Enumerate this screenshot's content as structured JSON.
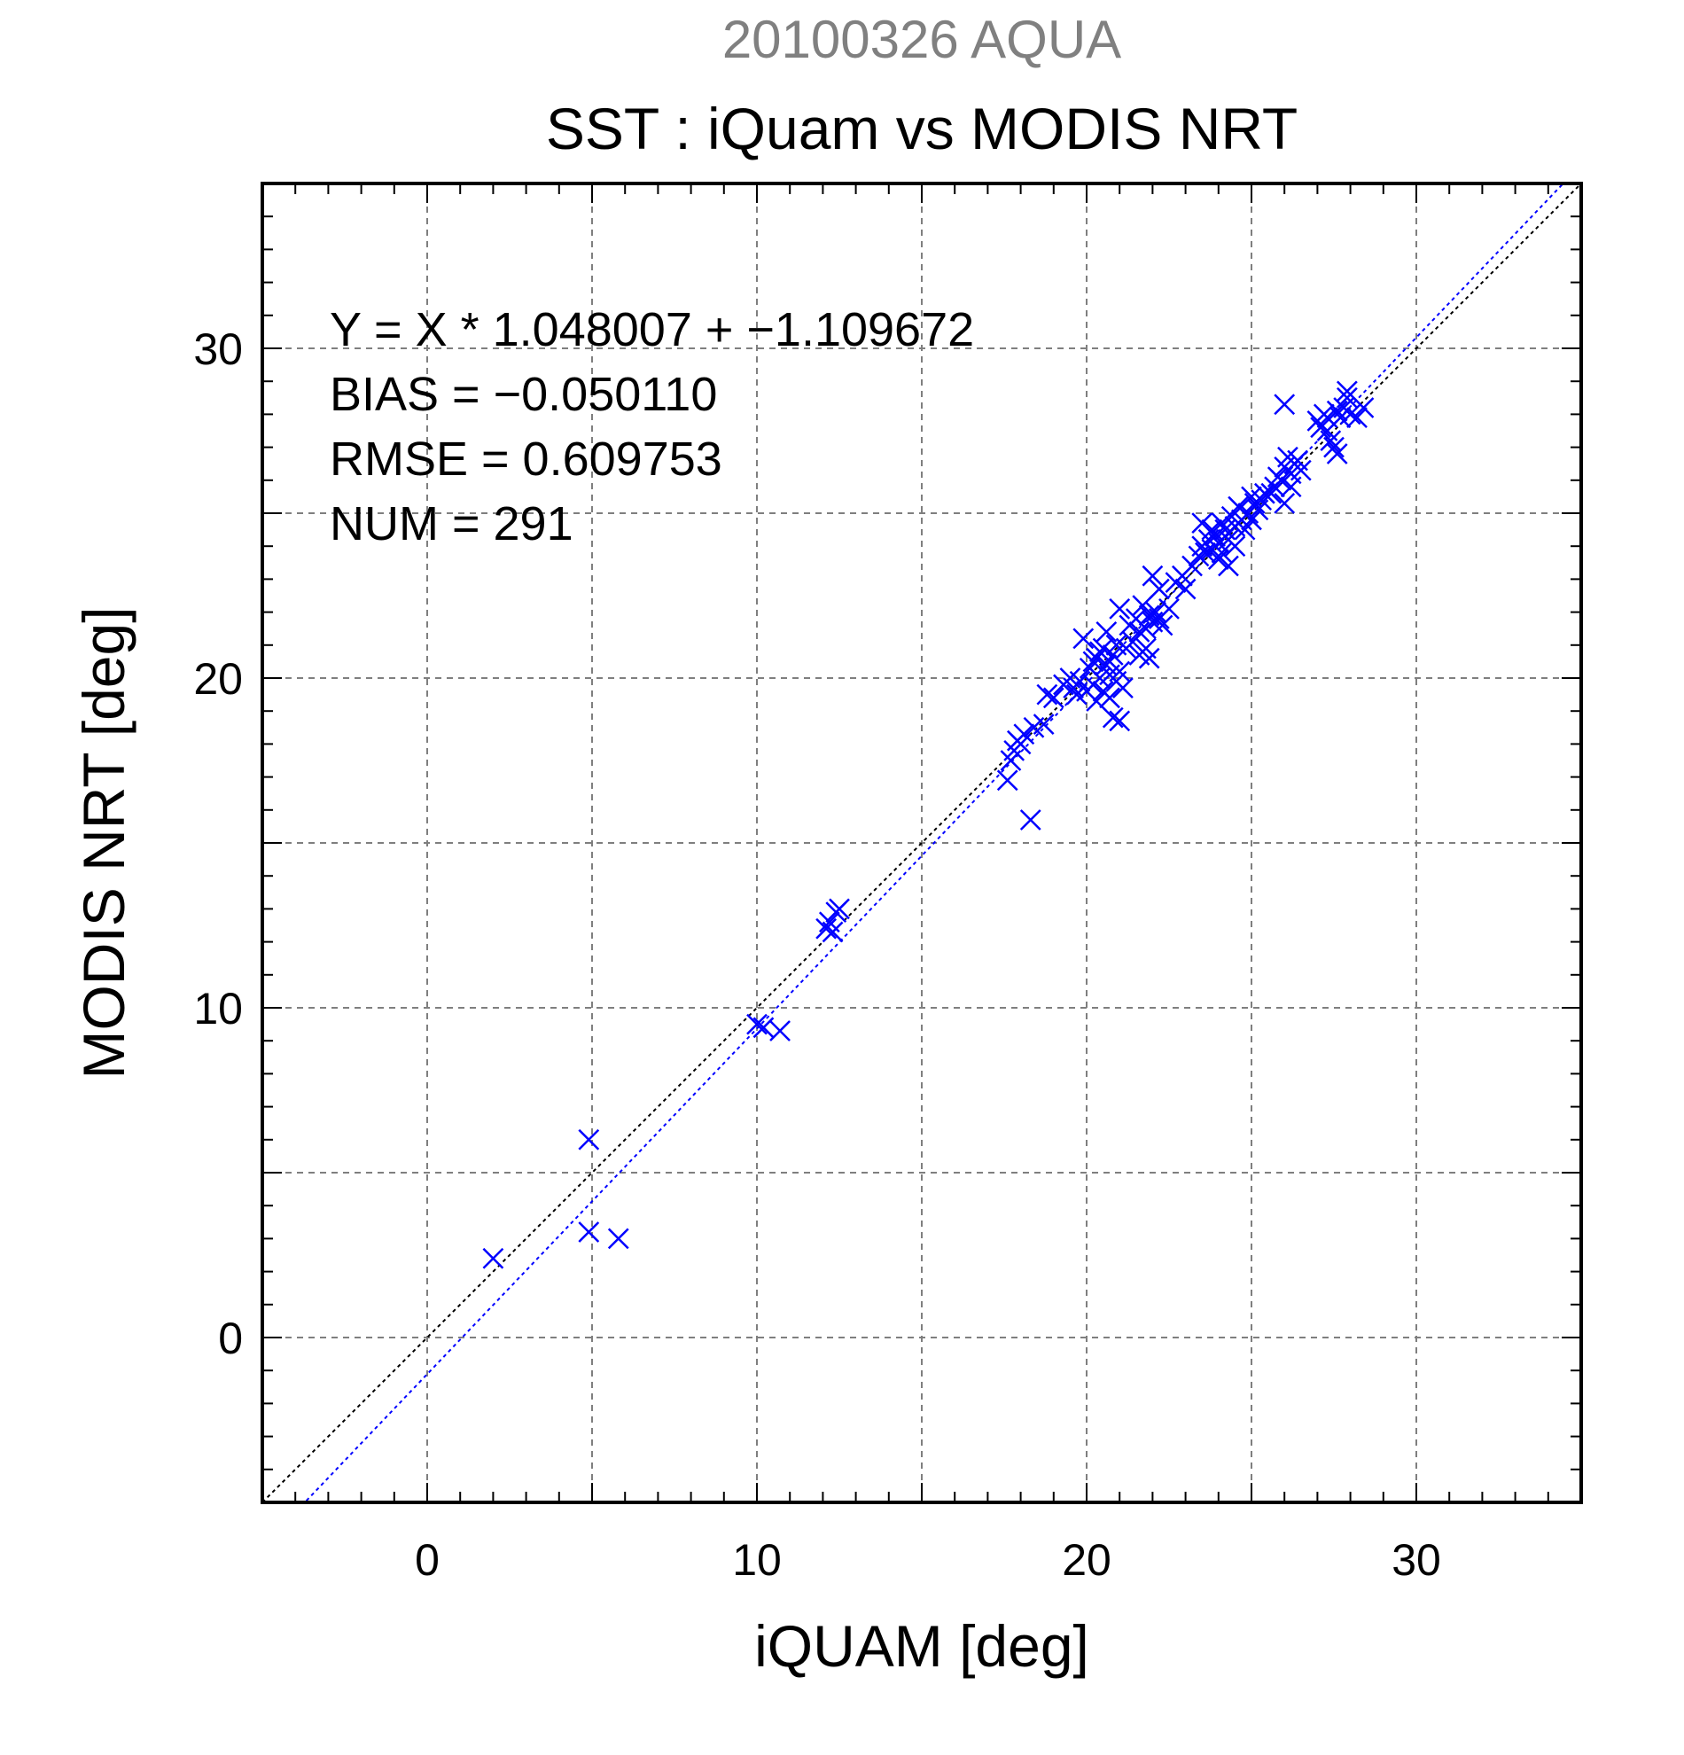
{
  "chart_data": {
    "type": "scatter",
    "supertitle": "20100326 AQUA",
    "title": "SST : iQuam vs MODIS NRT",
    "xlabel": "iQUAM [deg]",
    "ylabel": "MODIS NRT [deg]",
    "xlim": [
      -5,
      35
    ],
    "ylim": [
      -5,
      35
    ],
    "xticks": [
      0,
      10,
      20,
      30
    ],
    "yticks": [
      0,
      10,
      20,
      30
    ],
    "xtick_labels": [
      "0",
      "10",
      "20",
      "30"
    ],
    "ytick_labels": [
      "0",
      "10",
      "20",
      "30"
    ],
    "grid": true,
    "grid_step": 5,
    "minor_tick_step": 1,
    "marker": "x",
    "marker_color": "#0000ff",
    "annotations": [
      "Y = X * 1.048007 + −1.109672",
      "BIAS = −0.050110",
      "RMSE = 0.609753",
      "NUM = 291"
    ],
    "lines": [
      {
        "type": "identity",
        "color": "#000000",
        "style": "dotted",
        "slope": 1,
        "intercept": 0
      },
      {
        "type": "regression",
        "color": "#0000ff",
        "style": "dotted",
        "slope": 1.048007,
        "intercept": -1.109672
      }
    ],
    "series": [
      {
        "marker": "x",
        "color": "#0000ff",
        "points": [
          [
            2.0,
            2.4
          ],
          [
            4.9,
            6.0
          ],
          [
            4.9,
            3.2
          ],
          [
            5.8,
            3.0
          ],
          [
            10.0,
            9.5
          ],
          [
            10.2,
            9.4
          ],
          [
            10.7,
            9.3
          ],
          [
            12.1,
            12.4
          ],
          [
            12.2,
            12.6
          ],
          [
            12.3,
            12.3
          ],
          [
            12.4,
            12.9
          ],
          [
            12.5,
            13.0
          ],
          [
            17.6,
            16.9
          ],
          [
            17.7,
            17.5
          ],
          [
            17.8,
            17.8
          ],
          [
            17.9,
            18.1
          ],
          [
            18.0,
            18.0
          ],
          [
            18.1,
            18.3
          ],
          [
            18.3,
            15.7
          ],
          [
            18.4,
            18.5
          ],
          [
            18.7,
            18.6
          ],
          [
            18.8,
            19.5
          ],
          [
            19.0,
            19.4
          ],
          [
            19.3,
            19.8
          ],
          [
            19.5,
            20.0
          ],
          [
            19.6,
            19.7
          ],
          [
            19.7,
            19.5
          ],
          [
            19.8,
            19.9
          ],
          [
            19.9,
            21.2
          ],
          [
            20.0,
            19.6
          ],
          [
            20.1,
            20.3
          ],
          [
            20.2,
            19.8
          ],
          [
            20.3,
            20.6
          ],
          [
            20.3,
            19.3
          ],
          [
            20.4,
            20.0
          ],
          [
            20.5,
            20.9
          ],
          [
            20.5,
            19.6
          ],
          [
            20.6,
            20.4
          ],
          [
            20.7,
            20.1
          ],
          [
            20.7,
            19.4
          ],
          [
            20.8,
            20.7
          ],
          [
            20.8,
            18.8
          ],
          [
            20.9,
            19.9
          ],
          [
            20.9,
            21.0
          ],
          [
            21.0,
            18.7
          ],
          [
            21.0,
            20.2
          ],
          [
            21.1,
            19.7
          ],
          [
            20.6,
            21.4
          ],
          [
            20.4,
            20.8
          ],
          [
            20.2,
            20.5
          ],
          [
            21.0,
            22.1
          ],
          [
            21.2,
            20.9
          ],
          [
            21.3,
            21.6
          ],
          [
            21.4,
            21.1
          ],
          [
            21.5,
            21.8
          ],
          [
            21.6,
            20.7
          ],
          [
            21.6,
            21.4
          ],
          [
            21.7,
            22.2
          ],
          [
            21.8,
            21.5
          ],
          [
            21.8,
            20.9
          ],
          [
            21.9,
            21.9
          ],
          [
            21.9,
            20.6
          ],
          [
            22.0,
            23.1
          ],
          [
            22.0,
            21.7
          ],
          [
            22.1,
            22.0
          ],
          [
            22.2,
            22.7
          ],
          [
            22.2,
            21.8
          ],
          [
            22.3,
            21.6
          ],
          [
            22.5,
            22.1
          ],
          [
            22.7,
            22.9
          ],
          [
            22.9,
            23.1
          ],
          [
            23.0,
            22.7
          ],
          [
            23.2,
            23.4
          ],
          [
            23.4,
            23.7
          ],
          [
            23.5,
            24.0
          ],
          [
            23.5,
            24.7
          ],
          [
            23.6,
            23.8
          ],
          [
            23.7,
            24.2
          ],
          [
            23.8,
            23.9
          ],
          [
            23.8,
            24.5
          ],
          [
            23.9,
            24.3
          ],
          [
            24.0,
            23.6
          ],
          [
            24.0,
            24.1
          ],
          [
            24.1,
            24.7
          ],
          [
            24.1,
            23.8
          ],
          [
            24.2,
            24.5
          ],
          [
            24.3,
            24.2
          ],
          [
            24.3,
            23.4
          ],
          [
            24.4,
            24.9
          ],
          [
            24.5,
            24.6
          ],
          [
            24.5,
            24.0
          ],
          [
            24.6,
            25.2
          ],
          [
            24.7,
            24.8
          ],
          [
            24.8,
            24.5
          ],
          [
            24.9,
            25.0
          ],
          [
            25.0,
            25.5
          ],
          [
            25.0,
            24.8
          ],
          [
            25.1,
            25.3
          ],
          [
            25.2,
            25.1
          ],
          [
            25.3,
            25.4
          ],
          [
            25.4,
            25.6
          ],
          [
            25.6,
            25.6
          ],
          [
            25.7,
            25.8
          ],
          [
            25.8,
            26.1
          ],
          [
            25.9,
            26.0
          ],
          [
            26.0,
            26.4
          ],
          [
            26.0,
            25.3
          ],
          [
            26.1,
            26.7
          ],
          [
            26.2,
            26.2
          ],
          [
            26.2,
            25.8
          ],
          [
            26.3,
            26.5
          ],
          [
            26.4,
            26.6
          ],
          [
            26.5,
            26.3
          ],
          [
            26.0,
            28.3
          ],
          [
            27.0,
            27.8
          ],
          [
            27.1,
            27.6
          ],
          [
            27.2,
            28.0
          ],
          [
            27.3,
            27.9
          ],
          [
            27.4,
            27.2
          ],
          [
            27.5,
            27.0
          ],
          [
            27.6,
            26.8
          ],
          [
            27.6,
            28.1
          ],
          [
            27.7,
            27.9
          ],
          [
            27.8,
            28.2
          ],
          [
            27.9,
            28.5
          ],
          [
            28.0,
            28.0
          ],
          [
            28.2,
            27.9
          ],
          [
            28.4,
            28.2
          ],
          [
            27.9,
            28.7
          ],
          [
            27.3,
            27.5
          ]
        ]
      }
    ]
  }
}
